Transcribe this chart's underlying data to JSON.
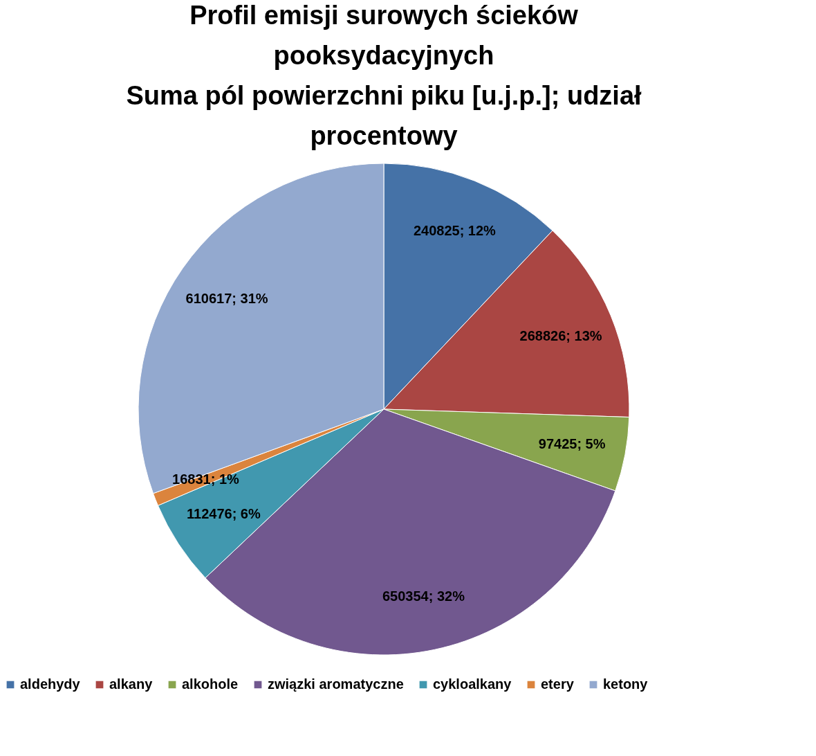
{
  "chart_data": {
    "type": "pie",
    "title": "Profil emisji surowych ścieków pooksydacyjnych",
    "subtitle": "Suma pól powierzchni piku [u.j.p.]; udział procentowy",
    "categories": [
      "aldehydy",
      "alkany",
      "alkohole",
      "związki aromatyczne",
      "cykloalkany",
      "etery",
      "ketony"
    ],
    "values": [
      240825,
      268826,
      97425,
      650354,
      112476,
      16831,
      610617
    ],
    "colors": [
      "#4572a7",
      "#aa4643",
      "#89a54e",
      "#71588f",
      "#4198af",
      "#db843d",
      "#93a9cf"
    ],
    "value_labels": [
      "240825; 12%",
      "268826; 13%",
      "97425; 5%",
      "650354; 32%",
      "112476; 6%",
      "16831; 1%",
      "610617; 31%"
    ],
    "legend": "bottom"
  }
}
